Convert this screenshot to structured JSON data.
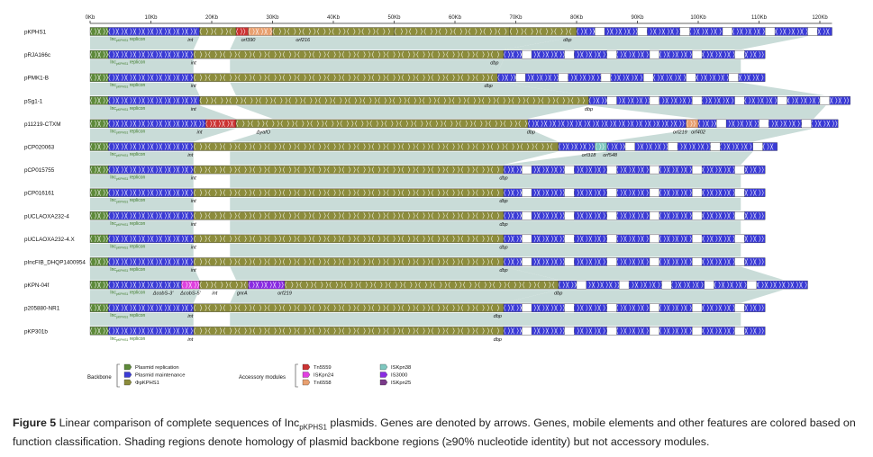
{
  "figure": {
    "scale": {
      "ticks": [
        "0Kb",
        "10Kb",
        "20Kb",
        "30Kb",
        "40Kb",
        "50Kb",
        "60Kb",
        "70Kb",
        "80Kb",
        "90Kb",
        "100Kb",
        "110Kb",
        "120Kb"
      ]
    },
    "plasmids": [
      {
        "name": "pKPHS1",
        "length_kb": 122,
        "labels": [
          {
            "text": "int",
            "kb": 16.5
          },
          {
            "text": "orf390",
            "kb": 26
          },
          {
            "text": "orf216",
            "kb": 35
          },
          {
            "text": "dbp",
            "kb": 78.5
          }
        ],
        "segments": [
          [
            "rep",
            0,
            3
          ],
          [
            "maint",
            3,
            18
          ],
          [
            "back",
            18,
            24
          ],
          [
            "tn5559",
            24,
            26
          ],
          [
            "ins",
            26,
            30
          ],
          [
            "back",
            30,
            50
          ],
          [
            "back",
            50,
            69
          ],
          [
            "back",
            69,
            80
          ],
          [
            "maint",
            80,
            122
          ]
        ]
      },
      {
        "name": "pRJA166c",
        "length_kb": 111,
        "labels": [
          {
            "text": "int",
            "kb": 17
          },
          {
            "text": "dbp",
            "kb": 66.5
          }
        ],
        "segments": [
          [
            "rep",
            0,
            3
          ],
          [
            "maint",
            3,
            17
          ],
          [
            "back",
            17,
            68
          ],
          [
            "maint",
            68,
            111
          ]
        ]
      },
      {
        "name": "pPMK1-B",
        "length_kb": 111,
        "labels": [
          {
            "text": "int",
            "kb": 17
          },
          {
            "text": "dbp",
            "kb": 65.5
          }
        ],
        "segments": [
          [
            "rep",
            0,
            3
          ],
          [
            "maint",
            3,
            17
          ],
          [
            "back",
            17,
            67
          ],
          [
            "maint",
            67,
            111
          ]
        ]
      },
      {
        "name": "pSg1-1",
        "length_kb": 125,
        "labels": [
          {
            "text": "int",
            "kb": 17
          },
          {
            "text": "dbp",
            "kb": 82
          }
        ],
        "segments": [
          [
            "rep",
            0,
            3
          ],
          [
            "maint",
            3,
            18
          ],
          [
            "back",
            18,
            82
          ],
          [
            "maint",
            82,
            125
          ]
        ]
      },
      {
        "name": "p11219-CTXM",
        "length_kb": 123,
        "labels": [
          {
            "text": "int",
            "kb": 18
          },
          {
            "text": "ΔyafO",
            "kb": 28.5
          },
          {
            "text": "dbp",
            "kb": 72.5
          },
          {
            "text": "orf219",
            "kb": 97
          },
          {
            "text": "orf402",
            "kb": 100
          }
        ],
        "segments": [
          [
            "rep",
            0,
            3
          ],
          [
            "maint",
            3,
            19
          ],
          [
            "tn5559",
            19,
            24
          ],
          [
            "back",
            24,
            72
          ],
          [
            "maint",
            72,
            98
          ],
          [
            "ins",
            98,
            100
          ],
          [
            "maint",
            100,
            123
          ]
        ]
      },
      {
        "name": "pCP020063",
        "length_kb": 113,
        "labels": [
          {
            "text": "int",
            "kb": 16.5
          },
          {
            "text": "orf318",
            "kb": 82
          },
          {
            "text": "orf548",
            "kb": 85.5
          }
        ],
        "segments": [
          [
            "rep",
            0,
            3
          ],
          [
            "maint",
            3,
            17
          ],
          [
            "back",
            17,
            77
          ],
          [
            "maint",
            77,
            83
          ],
          [
            "iskpn38",
            83,
            85
          ],
          [
            "maint",
            85,
            113
          ]
        ]
      },
      {
        "name": "pCP015755",
        "length_kb": 111,
        "labels": [
          {
            "text": "int",
            "kb": 17
          },
          {
            "text": "dbp",
            "kb": 68
          }
        ],
        "segments": [
          [
            "rep",
            0,
            3
          ],
          [
            "maint",
            3,
            17
          ],
          [
            "back",
            17,
            68
          ],
          [
            "maint",
            68,
            111
          ]
        ]
      },
      {
        "name": "pCP016161",
        "length_kb": 111,
        "labels": [
          {
            "text": "int",
            "kb": 17
          },
          {
            "text": "dbp",
            "kb": 68
          }
        ],
        "segments": [
          [
            "rep",
            0,
            3
          ],
          [
            "maint",
            3,
            17
          ],
          [
            "back",
            17,
            68
          ],
          [
            "maint",
            68,
            111
          ]
        ]
      },
      {
        "name": "pUCLAOXA232-4",
        "length_kb": 111,
        "labels": [
          {
            "text": "int",
            "kb": 17
          },
          {
            "text": "dbp",
            "kb": 68
          }
        ],
        "segments": [
          [
            "rep",
            0,
            3
          ],
          [
            "maint",
            3,
            17
          ],
          [
            "back",
            17,
            68
          ],
          [
            "maint",
            68,
            111
          ]
        ]
      },
      {
        "name": "pUCLAOXA232-4.X",
        "length_kb": 111,
        "labels": [
          {
            "text": "int",
            "kb": 17
          },
          {
            "text": "dbp",
            "kb": 68
          }
        ],
        "segments": [
          [
            "rep",
            0,
            3
          ],
          [
            "maint",
            3,
            17
          ],
          [
            "back",
            17,
            68
          ],
          [
            "maint",
            68,
            111
          ]
        ]
      },
      {
        "name": "pIncFIB_DHQP1400954",
        "length_kb": 111,
        "labels": [
          {
            "text": "int",
            "kb": 17
          },
          {
            "text": "dbp",
            "kb": 68
          }
        ],
        "segments": [
          [
            "rep",
            0,
            3
          ],
          [
            "maint",
            3,
            17
          ],
          [
            "back",
            17,
            68
          ],
          [
            "maint",
            68,
            111
          ]
        ]
      },
      {
        "name": "pKPN-04f",
        "length_kb": 118,
        "labels": [
          {
            "text": "ΔcobS-3'",
            "kb": 12
          },
          {
            "text": "ΔcobS-5'",
            "kb": 16.5
          },
          {
            "text": "int",
            "kb": 20.5
          },
          {
            "text": "gnrA",
            "kb": 25
          },
          {
            "text": "orf219",
            "kb": 32
          },
          {
            "text": "dbp",
            "kb": 77
          }
        ],
        "segments": [
          [
            "rep",
            0,
            3
          ],
          [
            "maint",
            3,
            15
          ],
          [
            "iskpn24",
            15,
            18
          ],
          [
            "back",
            18,
            26
          ],
          [
            "is3000",
            26,
            32
          ],
          [
            "back",
            32,
            77
          ],
          [
            "maint",
            77,
            118
          ]
        ]
      },
      {
        "name": "p205880-NR1",
        "length_kb": 111,
        "labels": [
          {
            "text": "int",
            "kb": 16.5
          },
          {
            "text": "dbp",
            "kb": 67
          }
        ],
        "segments": [
          [
            "rep",
            0,
            3
          ],
          [
            "maint",
            3,
            17
          ],
          [
            "back",
            17,
            68
          ],
          [
            "maint",
            68,
            111
          ]
        ]
      },
      {
        "name": "pKP301b",
        "length_kb": 111,
        "labels": [
          {
            "text": "int",
            "kb": 16.5
          },
          {
            "text": "dbp",
            "kb": 67
          }
        ],
        "segments": [
          [
            "rep",
            0,
            3
          ],
          [
            "maint",
            3,
            17
          ],
          [
            "back",
            17,
            68
          ],
          [
            "maint",
            68,
            111
          ]
        ]
      }
    ],
    "rep_label": {
      "prefix": "Inc",
      "sub": "pKPHS1",
      "suffix": " replicon"
    },
    "legend": {
      "backbone_title": "Backbone",
      "backbone_items": [
        {
          "key": "rep",
          "label": "Plasmid replication",
          "color": "#5e8a3a"
        },
        {
          "key": "maint",
          "label": "Plasmid maintenance",
          "color": "#3b3bd6"
        },
        {
          "key": "back",
          "label": "ΦpKPHS1",
          "color": "#8c8c3c"
        }
      ],
      "accessory_title": "Accessory modules",
      "accessory_items": [
        {
          "key": "tn5559",
          "label": "Tn5559",
          "color": "#cc3333"
        },
        {
          "key": "iskpn24",
          "label": "ISKpn24",
          "color": "#e040e0"
        },
        {
          "key": "tn6558",
          "label": "Tn6558",
          "color": "#e8a070"
        },
        {
          "key": "iskpn38",
          "label": "ISKpn38",
          "color": "#7ec8c0"
        },
        {
          "key": "is3000",
          "label": "IS3000",
          "color": "#8a2be2"
        },
        {
          "key": "iskpn25",
          "label": "ISKpn25",
          "color": "#7a3a8a"
        }
      ],
      "ins_color": "#e8a070"
    },
    "homology_color": "#c9dcd8"
  },
  "caption": {
    "label": "Figure 5",
    "text_before": " Linear comparison of complete sequences of Inc",
    "sub": "pKPHS1",
    "text_after": " plasmids. Genes are denoted by arrows. Genes, mobile elements and other features are colored based on function classification. Shading regions denote homology of plasmid backbone regions (≥90% nucleotide identity) but not accessory modules."
  }
}
